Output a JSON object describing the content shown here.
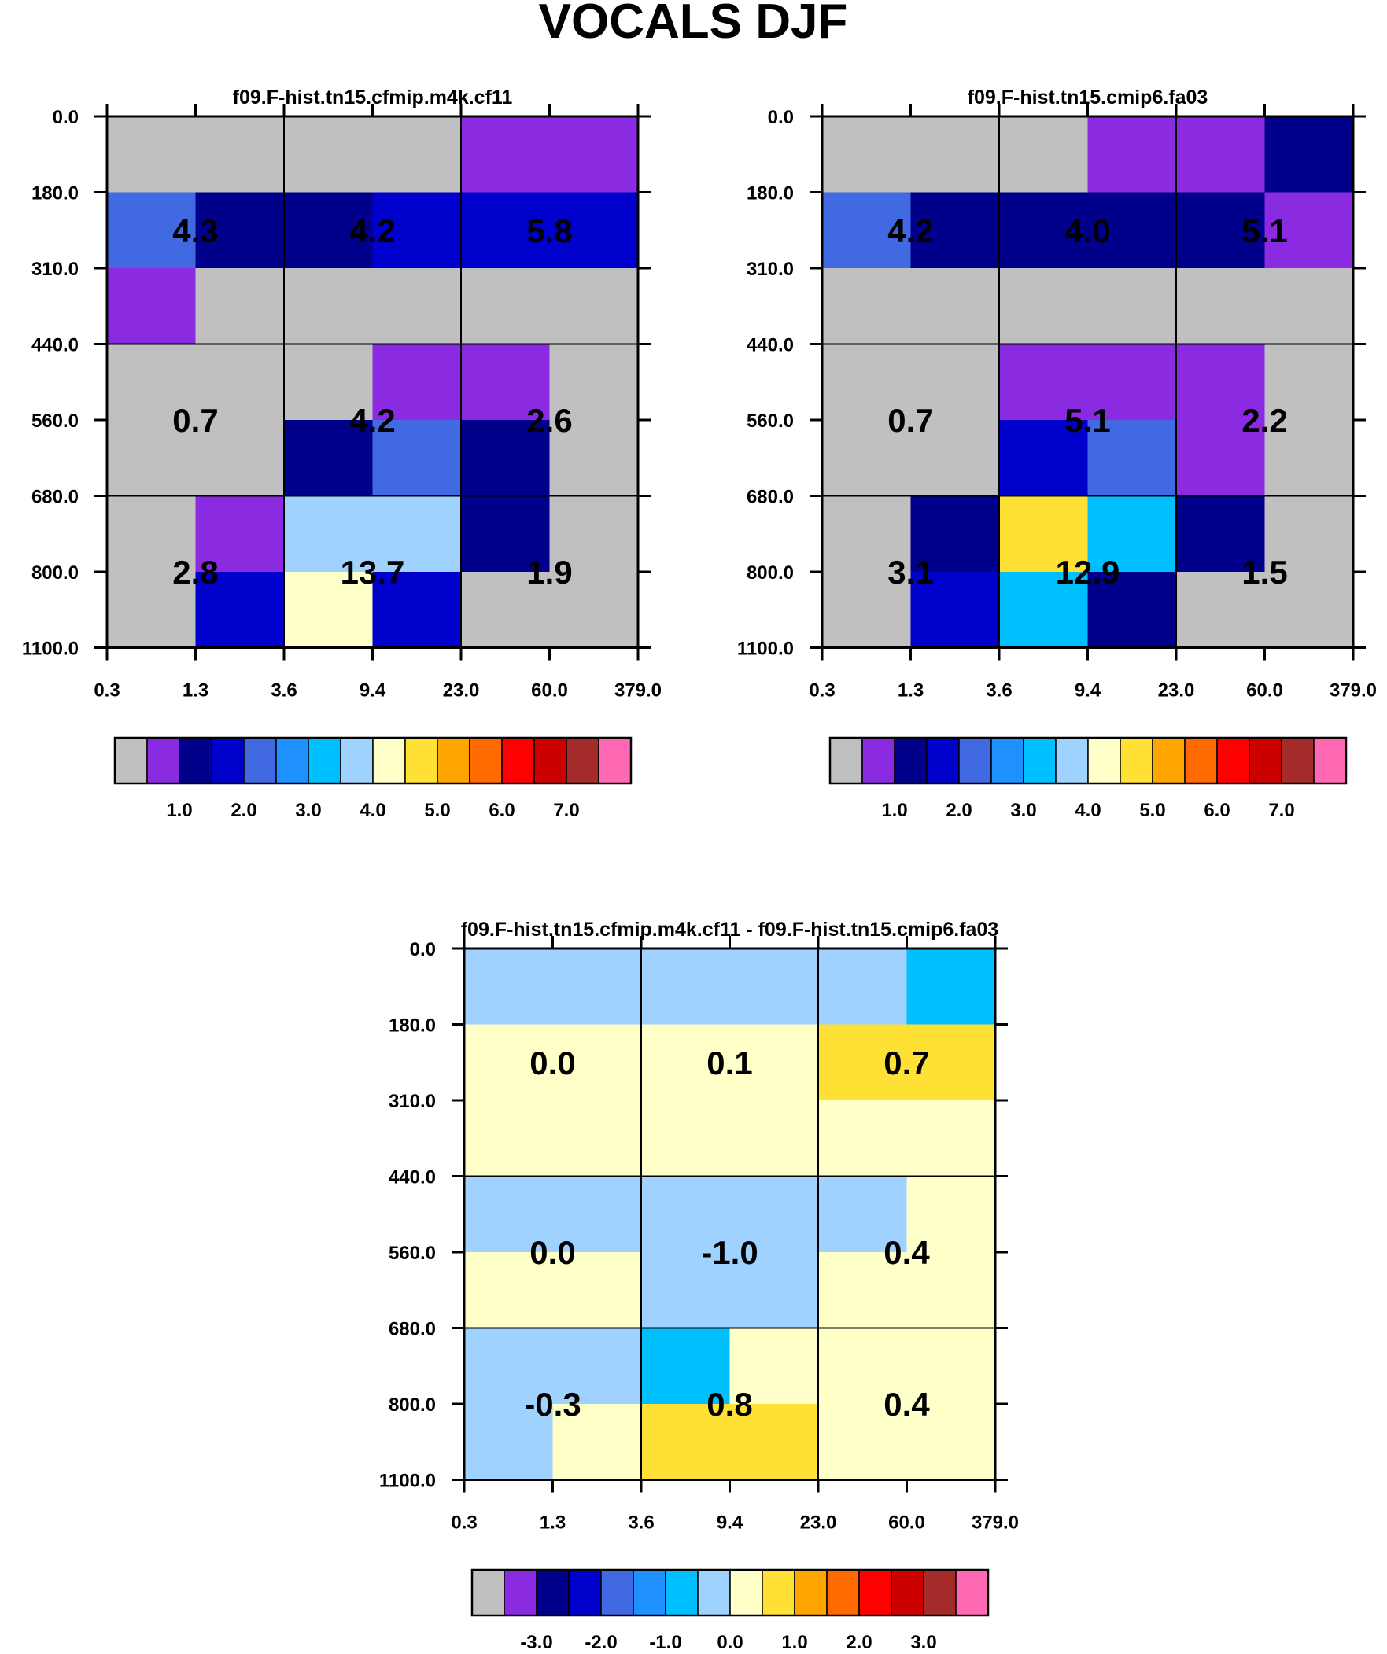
{
  "title": "VOCALS DJF",
  "colors": {
    "abs": [
      "#c0c0c0",
      "#8a2be2",
      "#00008b",
      "#0000cd",
      "#4169e1",
      "#1e90ff",
      "#00bfff",
      "#a0d2ff",
      "#ffffc8",
      "#ffe135",
      "#ffa500",
      "#ff6a00",
      "#ff0000",
      "#cd0000",
      "#a52a2a",
      "#ff69b4"
    ],
    "diff": [
      "#c0c0c0",
      "#8a2be2",
      "#00008b",
      "#0000cd",
      "#4169e1",
      "#1e90ff",
      "#00bfff",
      "#a0d2ff",
      "#ffffc8",
      "#ffe135",
      "#ffa500",
      "#ff6a00",
      "#ff0000",
      "#cd0000",
      "#a52a2a",
      "#ff69b4"
    ]
  },
  "chart_data": [
    {
      "type": "heatmap",
      "title": "f09.F-hist.tn15.cfmip.m4k.cf11",
      "x_ticks": [
        "0.3",
        "1.3",
        "3.6",
        "9.4",
        "23.0",
        "60.0",
        "379.0"
      ],
      "y_ticks": [
        "0.0",
        "180.0",
        "310.0",
        "440.0",
        "560.0",
        "680.0",
        "800.0",
        "1100.0"
      ],
      "colorbar": "abs",
      "colorbar_labels": [
        "1.0",
        "2.0",
        "3.0",
        "4.0",
        "5.0",
        "6.0",
        "7.0"
      ],
      "cell_colors": [
        [
          0,
          0,
          0,
          0,
          1,
          1
        ],
        [
          4,
          2,
          2,
          3,
          3,
          3
        ],
        [
          1,
          0,
          0,
          0,
          0,
          0
        ],
        [
          0,
          0,
          0,
          1,
          1,
          0
        ],
        [
          0,
          0,
          2,
          4,
          2,
          0
        ],
        [
          0,
          1,
          7,
          7,
          2,
          0
        ],
        [
          0,
          3,
          8,
          3,
          0,
          0
        ]
      ],
      "labels": [
        {
          "text": "4.3",
          "x": 1,
          "y": 1.5
        },
        {
          "text": "4.2",
          "x": 3,
          "y": 1.5
        },
        {
          "text": "5.8",
          "x": 5,
          "y": 1.5
        },
        {
          "text": "0.7",
          "x": 1,
          "y": 4
        },
        {
          "text": "4.2",
          "x": 3,
          "y": 4
        },
        {
          "text": "2.6",
          "x": 5,
          "y": 4
        },
        {
          "text": "2.8",
          "x": 1,
          "y": 6
        },
        {
          "text": "13.7",
          "x": 3,
          "y": 6
        },
        {
          "text": "1.9",
          "x": 5,
          "y": 6
        }
      ]
    },
    {
      "type": "heatmap",
      "title": "f09.F-hist.tn15.cmip6.fa03",
      "x_ticks": [
        "0.3",
        "1.3",
        "3.6",
        "9.4",
        "23.0",
        "60.0",
        "379.0"
      ],
      "y_ticks": [
        "0.0",
        "180.0",
        "310.0",
        "440.0",
        "560.0",
        "680.0",
        "800.0",
        "1100.0"
      ],
      "colorbar": "abs",
      "colorbar_labels": [
        "1.0",
        "2.0",
        "3.0",
        "4.0",
        "5.0",
        "6.0",
        "7.0"
      ],
      "cell_colors": [
        [
          0,
          0,
          0,
          1,
          1,
          2
        ],
        [
          4,
          2,
          2,
          2,
          2,
          1
        ],
        [
          0,
          0,
          0,
          0,
          0,
          0
        ],
        [
          0,
          0,
          1,
          1,
          1,
          0
        ],
        [
          0,
          0,
          3,
          4,
          1,
          0
        ],
        [
          0,
          2,
          9,
          6,
          2,
          0
        ],
        [
          0,
          3,
          6,
          2,
          0,
          0
        ]
      ],
      "labels": [
        {
          "text": "4.2",
          "x": 1,
          "y": 1.5
        },
        {
          "text": "4.0",
          "x": 3,
          "y": 1.5
        },
        {
          "text": "5.1",
          "x": 5,
          "y": 1.5
        },
        {
          "text": "0.7",
          "x": 1,
          "y": 4
        },
        {
          "text": "5.1",
          "x": 3,
          "y": 4
        },
        {
          "text": "2.2",
          "x": 5,
          "y": 4
        },
        {
          "text": "3.1",
          "x": 1,
          "y": 6
        },
        {
          "text": "12.9",
          "x": 3,
          "y": 6
        },
        {
          "text": "1.5",
          "x": 5,
          "y": 6
        }
      ]
    },
    {
      "type": "heatmap",
      "title": "f09.F-hist.tn15.cfmip.m4k.cf11 - f09.F-hist.tn15.cmip6.fa03",
      "x_ticks": [
        "0.3",
        "1.3",
        "3.6",
        "9.4",
        "23.0",
        "60.0",
        "379.0"
      ],
      "y_ticks": [
        "0.0",
        "180.0",
        "310.0",
        "440.0",
        "560.0",
        "680.0",
        "800.0",
        "1100.0"
      ],
      "colorbar": "diff",
      "colorbar_labels": [
        "-3.0",
        "-2.0",
        "-1.0",
        "0.0",
        "1.0",
        "2.0",
        "3.0"
      ],
      "cell_colors": [
        [
          7,
          7,
          7,
          7,
          7,
          6
        ],
        [
          8,
          8,
          8,
          8,
          9,
          9
        ],
        [
          8,
          8,
          8,
          8,
          8,
          8
        ],
        [
          7,
          7,
          7,
          7,
          7,
          8
        ],
        [
          8,
          8,
          7,
          7,
          8,
          8
        ],
        [
          7,
          7,
          6,
          8,
          8,
          8
        ],
        [
          7,
          8,
          9,
          9,
          8,
          8
        ]
      ],
      "labels": [
        {
          "text": "0.0",
          "x": 1,
          "y": 1.5
        },
        {
          "text": "0.1",
          "x": 3,
          "y": 1.5
        },
        {
          "text": "0.7",
          "x": 5,
          "y": 1.5
        },
        {
          "text": "0.0",
          "x": 1,
          "y": 4
        },
        {
          "text": "-1.0",
          "x": 3,
          "y": 4
        },
        {
          "text": "0.4",
          "x": 5,
          "y": 4
        },
        {
          "text": "-0.3",
          "x": 1,
          "y": 6
        },
        {
          "text": "0.8",
          "x": 3,
          "y": 6
        },
        {
          "text": "0.4",
          "x": 5,
          "y": 6
        }
      ]
    }
  ]
}
